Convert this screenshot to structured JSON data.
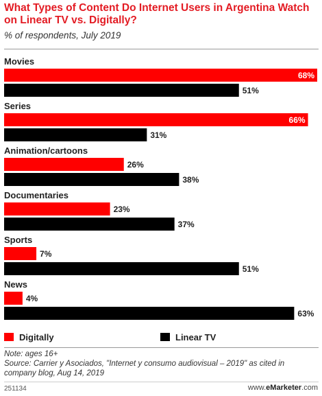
{
  "header": {
    "title": "What Types of Content Do Internet Users in Argentina Watch on Linear TV vs. Digitally?",
    "subtitle": "% of respondents, July 2019"
  },
  "chart_data": {
    "type": "bar",
    "orientation": "horizontal",
    "categories": [
      "Movies",
      "Series",
      "Animation/cartoons",
      "Documentaries",
      "Sports",
      "News"
    ],
    "series": [
      {
        "name": "Digitally",
        "values": [
          68,
          66,
          26,
          23,
          7,
          4
        ],
        "color": "#ff0000"
      },
      {
        "name": "Linear TV",
        "values": [
          51,
          31,
          38,
          37,
          51,
          63
        ],
        "color": "#000000"
      }
    ],
    "value_suffix": "%",
    "xlim": [
      0,
      68
    ],
    "grid": false,
    "legend_position": "bottom"
  },
  "notes": {
    "note": "Note: ages 16+",
    "source": "Source: Carrier y Asociados, \"Internet y consumo audiovisual – 2019\" as cited in company blog, Aug 14, 2019"
  },
  "footer": {
    "id": "251134",
    "brand_prefix": "www.",
    "brand_name": "eMarketer",
    "brand_suffix": ".com"
  }
}
